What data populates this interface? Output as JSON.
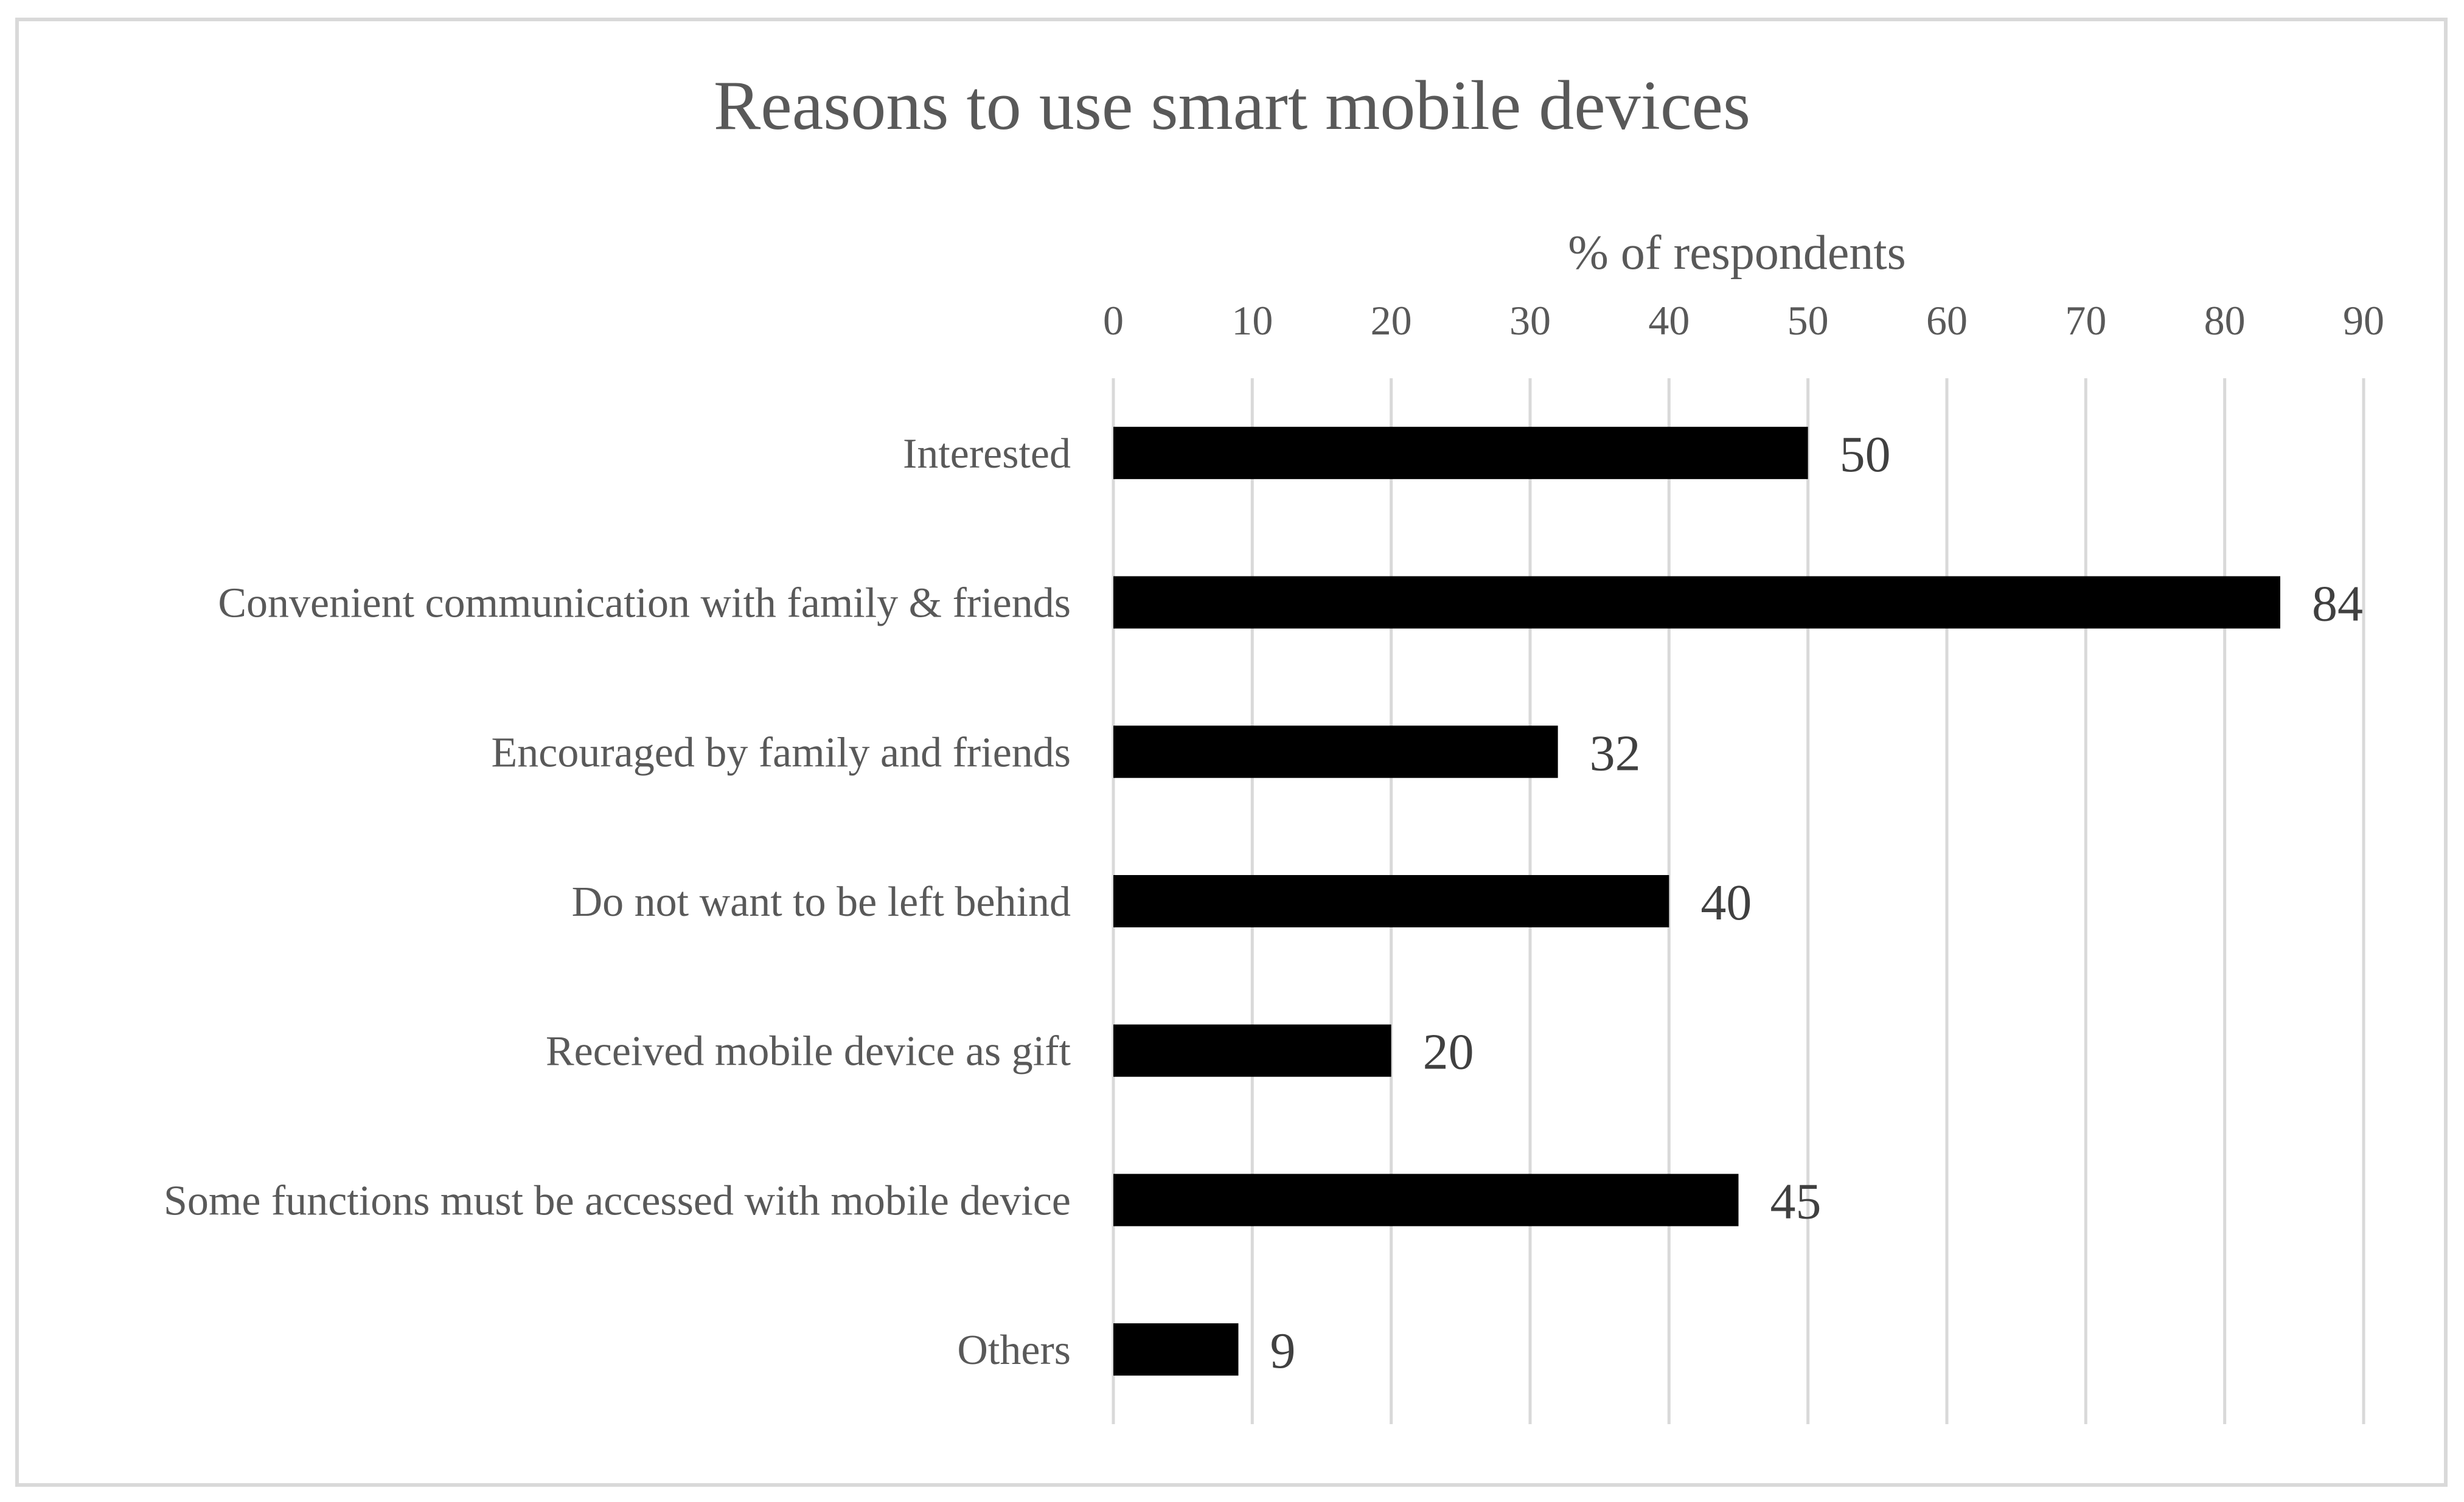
{
  "chart_data": {
    "type": "bar",
    "orientation": "horizontal",
    "title": "Reasons to use smart mobile devices",
    "xlabel": "% of respondents",
    "ylabel": "",
    "xlim": [
      0,
      90
    ],
    "ticks": [
      0,
      10,
      20,
      30,
      40,
      50,
      60,
      70,
      80,
      90
    ],
    "tick_labels": [
      "0",
      "10",
      "20",
      "30",
      "40",
      "50",
      "60",
      "70",
      "80",
      "90"
    ],
    "grid": true,
    "legend": "none",
    "categories": [
      "Interested",
      "Convenient communication with family & friends",
      "Encouraged by family and friends",
      "Do not want to be left behind",
      "Received mobile device as gift",
      "Some functions must be accessed with mobile device",
      "Others"
    ],
    "values": [
      50,
      84,
      32,
      40,
      20,
      45,
      9
    ],
    "data_labels": [
      "50",
      "84",
      "32",
      "40",
      "20",
      "45",
      "9"
    ],
    "colors": {
      "bar": "#000000",
      "grid": "#d9d9d9",
      "text": "#595959",
      "data_label": "#404040",
      "frame": "#d9d9d9"
    }
  }
}
